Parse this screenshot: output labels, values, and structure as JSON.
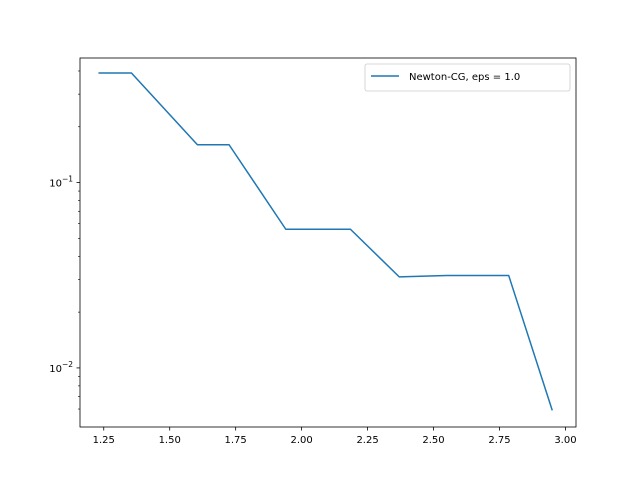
{
  "chart_data": {
    "type": "line",
    "title": "",
    "xlabel": "",
    "ylabel": "",
    "xlim": [
      1.16,
      3.04
    ],
    "ylim": [
      0.0048,
      0.47
    ],
    "yscale": "log",
    "grid": false,
    "legend_position": "top-right",
    "x_ticks": [
      1.25,
      1.5,
      1.75,
      2.0,
      2.25,
      2.5,
      2.75,
      3.0
    ],
    "x_tick_labels": [
      "1.25",
      "1.50",
      "1.75",
      "2.00",
      "2.25",
      "2.50",
      "2.75",
      "3.00"
    ],
    "y_major_ticks": [
      {
        "value": 0.1,
        "base": "10",
        "exp": "−1"
      },
      {
        "value": 0.01,
        "base": "10",
        "exp": "−2"
      }
    ],
    "y_minor_ticks": [
      0.006,
      0.007,
      0.008,
      0.009,
      0.02,
      0.03,
      0.04,
      0.05,
      0.06,
      0.07,
      0.08,
      0.09,
      0.2,
      0.3,
      0.4
    ],
    "series": [
      {
        "name": "Newton-CG, eps = 1.0",
        "color": "#1f77b4",
        "x": [
          1.23,
          1.355,
          1.605,
          1.725,
          1.94,
          2.185,
          2.37,
          2.55,
          2.785,
          2.95
        ],
        "y": [
          0.39,
          0.39,
          0.16,
          0.16,
          0.056,
          0.056,
          0.031,
          0.0315,
          0.0315,
          0.0059
        ]
      }
    ]
  }
}
